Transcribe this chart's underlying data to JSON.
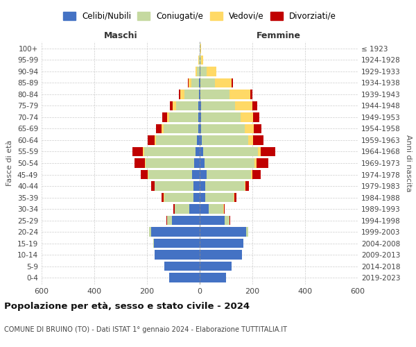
{
  "age_groups": [
    "0-4",
    "5-9",
    "10-14",
    "15-19",
    "20-24",
    "25-29",
    "30-34",
    "35-39",
    "40-44",
    "45-49",
    "50-54",
    "55-59",
    "60-64",
    "65-69",
    "70-74",
    "75-79",
    "80-84",
    "85-89",
    "90-94",
    "95-99",
    "100+"
  ],
  "birth_years": [
    "2019-2023",
    "2014-2018",
    "2009-2013",
    "2004-2008",
    "1999-2003",
    "1994-1998",
    "1989-1993",
    "1984-1988",
    "1979-1983",
    "1974-1978",
    "1969-1973",
    "1964-1968",
    "1959-1963",
    "1954-1958",
    "1949-1953",
    "1944-1948",
    "1939-1943",
    "1934-1938",
    "1929-1933",
    "1924-1928",
    "≤ 1923"
  ],
  "male": {
    "celibe": [
      115,
      135,
      170,
      175,
      185,
      105,
      40,
      25,
      25,
      30,
      20,
      15,
      10,
      6,
      5,
      5,
      3,
      2,
      0,
      0,
      0
    ],
    "coniugato": [
      0,
      0,
      0,
      2,
      8,
      18,
      55,
      110,
      145,
      165,
      185,
      195,
      155,
      130,
      110,
      85,
      55,
      30,
      10,
      2,
      0
    ],
    "vedovo": [
      0,
      0,
      0,
      0,
      0,
      0,
      0,
      1,
      1,
      2,
      3,
      5,
      5,
      8,
      10,
      12,
      15,
      10,
      5,
      2,
      0
    ],
    "divorziato": [
      0,
      0,
      0,
      0,
      0,
      3,
      5,
      8,
      12,
      28,
      40,
      40,
      28,
      22,
      18,
      12,
      5,
      3,
      2,
      0,
      0
    ]
  },
  "female": {
    "nubile": [
      100,
      120,
      160,
      165,
      175,
      95,
      35,
      20,
      20,
      25,
      18,
      12,
      8,
      5,
      5,
      5,
      3,
      2,
      2,
      0,
      0
    ],
    "coniugata": [
      0,
      0,
      0,
      2,
      8,
      18,
      55,
      110,
      150,
      170,
      190,
      210,
      175,
      165,
      150,
      130,
      110,
      55,
      25,
      5,
      2
    ],
    "vedova": [
      0,
      0,
      0,
      0,
      0,
      0,
      1,
      2,
      3,
      5,
      8,
      10,
      20,
      35,
      48,
      65,
      80,
      65,
      35,
      8,
      2
    ],
    "divorziata": [
      0,
      0,
      0,
      0,
      0,
      3,
      5,
      8,
      15,
      32,
      45,
      55,
      38,
      28,
      22,
      18,
      8,
      5,
      2,
      0,
      0
    ]
  },
  "colors": {
    "celibe": "#4472C4",
    "coniugato": "#C5D9A0",
    "vedovo": "#FFD966",
    "divorziato": "#C00000"
  },
  "legend_labels": [
    "Celibi/Nubili",
    "Coniugati/e",
    "Vedovi/e",
    "Divorziati/e"
  ],
  "title": "Popolazione per età, sesso e stato civile - 2024",
  "subtitle": "COMUNE DI BRUINO (TO) - Dati ISTAT 1° gennaio 2024 - Elaborazione TUTTITALIA.IT",
  "xlabel_left": "Maschi",
  "xlabel_right": "Femmine",
  "ylabel_left": "Fasce di età",
  "ylabel_right": "Anni di nascita",
  "xlim": 600,
  "background_color": "#ffffff"
}
